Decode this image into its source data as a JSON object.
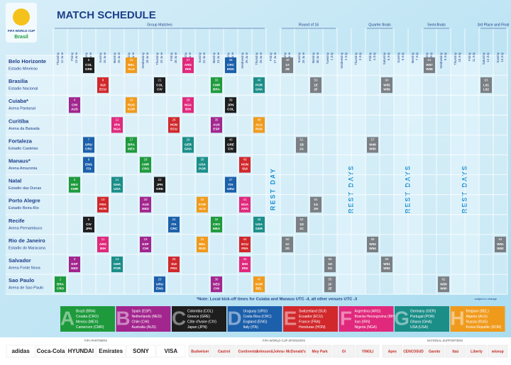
{
  "header": {
    "logo": [
      "FIFA WORLD CUP",
      "Brasil"
    ],
    "title": "MATCH SCHEDULE"
  },
  "stages": [
    {
      "name": "Group Matches",
      "first": "12 June",
      "last": "26 June"
    },
    {
      "name": "Round of 16",
      "first": "28 June",
      "last": "1 July"
    },
    {
      "name": "Quarter-finals",
      "first": "4 July",
      "last": "5 July"
    },
    {
      "name": "Semi-finals",
      "first": "8 July",
      "last": "9 July"
    },
    {
      "name": "3rd Place and Final",
      "first": "12 July",
      "last": "13 July"
    }
  ],
  "columns": [
    {
      "weekday": "Thursday",
      "date": "12 June"
    },
    {
      "weekday": "Friday",
      "date": "13 June"
    },
    {
      "weekday": "Saturday",
      "date": "14 June"
    },
    {
      "weekday": "Sunday",
      "date": "15 June"
    },
    {
      "weekday": "Monday",
      "date": "16 June"
    },
    {
      "weekday": "Tuesday",
      "date": "17 June"
    },
    {
      "weekday": "Wednesday",
      "date": "18 June"
    },
    {
      "weekday": "Thursday",
      "date": "19 June"
    },
    {
      "weekday": "Friday",
      "date": "20 June"
    },
    {
      "weekday": "Saturday",
      "date": "21 June"
    },
    {
      "weekday": "Sunday",
      "date": "22 June"
    },
    {
      "weekday": "Monday",
      "date": "23 June"
    },
    {
      "weekday": "Tuesday",
      "date": "24 June"
    },
    {
      "weekday": "Wednesday",
      "date": "25 June"
    },
    {
      "weekday": "Thursday",
      "date": "26 June"
    },
    {
      "weekday": "Friday",
      "date": "27 June"
    },
    {
      "weekday": "Saturday",
      "date": "28 June"
    },
    {
      "weekday": "Sunday",
      "date": "29 June"
    },
    {
      "weekday": "Monday",
      "date": "30 June"
    },
    {
      "weekday": "Tuesday",
      "date": "1 July"
    },
    {
      "weekday": "Wednesday",
      "date": "2 July"
    },
    {
      "weekday": "Thursday",
      "date": "3 July"
    },
    {
      "weekday": "Friday",
      "date": "4 July"
    },
    {
      "weekday": "Saturday",
      "date": "5 July"
    },
    {
      "weekday": "Sunday",
      "date": "6 July"
    },
    {
      "weekday": "Monday",
      "date": "7 July"
    },
    {
      "weekday": "Tuesday",
      "date": "8 July"
    },
    {
      "weekday": "Wednesday",
      "date": "9 July"
    },
    {
      "weekday": "Thursday",
      "date": "10 July"
    },
    {
      "weekday": "Friday",
      "date": "11 July"
    },
    {
      "weekday": "Saturday",
      "date": "12 July"
    },
    {
      "weekday": "Sunday",
      "date": "13 July"
    }
  ],
  "rest_days": [
    {
      "label": "REST DAY",
      "first": "27 June",
      "last": "27 June"
    },
    {
      "label": "REST DAYS",
      "first": "2 July",
      "last": "3 July"
    },
    {
      "label": "REST DAYS",
      "first": "6 July",
      "last": "7 July"
    },
    {
      "label": "REST DAYS",
      "first": "10 July",
      "last": "11 July"
    }
  ],
  "knockout_color": "#7a7f84",
  "venues": [
    {
      "city": "Belo Horizonte",
      "stadium": "Estadio Mineirao",
      "matches": [
        {
          "no": 5,
          "date": "14 June",
          "group": "C",
          "teams": [
            "COL",
            "GRE"
          ]
        },
        {
          "no": 15,
          "date": "17 June",
          "group": "H",
          "teams": [
            "BEL",
            "ALG"
          ]
        },
        {
          "no": 27,
          "date": "21 June",
          "group": "F",
          "teams": [
            "ARG",
            "IRN"
          ]
        },
        {
          "no": 38,
          "date": "24 June",
          "group": "D",
          "teams": [
            "CRC",
            "ENG"
          ]
        },
        {
          "no": 49,
          "date": "28 June",
          "teams": [
            "1A",
            "2B"
          ]
        },
        {
          "no": 61,
          "date": "8 July",
          "teams": [
            "W57",
            "W58"
          ]
        }
      ]
    },
    {
      "city": "Brasilia",
      "stadium": "Estadio Nacional",
      "matches": [
        {
          "no": 9,
          "date": "15 June",
          "group": "E",
          "teams": [
            "SUI",
            "ECU"
          ]
        },
        {
          "no": 21,
          "date": "19 June",
          "group": "C",
          "teams": [
            "COL",
            "CIV"
          ]
        },
        {
          "no": 33,
          "date": "23 June",
          "group": "A",
          "teams": [
            "CMR",
            "BRA"
          ]
        },
        {
          "no": 46,
          "date": "26 June",
          "group": "G",
          "teams": [
            "POR",
            "GHA"
          ]
        },
        {
          "no": 53,
          "date": "30 June",
          "teams": [
            "1E",
            "2F"
          ]
        },
        {
          "no": 60,
          "date": "5 July",
          "teams": [
            "W55",
            "W56"
          ]
        },
        {
          "no": 63,
          "date": "12 July",
          "teams": [
            "L61",
            "L62"
          ]
        }
      ]
    },
    {
      "city": "Cuiaba*",
      "stadium": "Arena Pantanal",
      "matches": [
        {
          "no": 4,
          "date": "13 June",
          "group": "B",
          "teams": [
            "CHI",
            "AUS"
          ]
        },
        {
          "no": 16,
          "date": "17 June",
          "group": "H",
          "teams": [
            "RUS",
            "KOR"
          ]
        },
        {
          "no": 28,
          "date": "21 June",
          "group": "F",
          "teams": [
            "NGA",
            "BIH"
          ]
        },
        {
          "no": 39,
          "date": "24 June",
          "group": "C",
          "teams": [
            "JPN",
            "COL"
          ]
        }
      ]
    },
    {
      "city": "Curitiba",
      "stadium": "Arena da Baixada",
      "matches": [
        {
          "no": 12,
          "date": "16 June",
          "group": "F",
          "teams": [
            "IRN",
            "NGA"
          ]
        },
        {
          "no": 26,
          "date": "20 June",
          "group": "E",
          "teams": [
            "HON",
            "ECU"
          ]
        },
        {
          "no": 35,
          "date": "23 June",
          "group": "B",
          "teams": [
            "AUS",
            "ESP"
          ]
        },
        {
          "no": 48,
          "date": "26 June",
          "group": "H",
          "teams": [
            "ALG",
            "RUS"
          ]
        }
      ]
    },
    {
      "city": "Fortaleza",
      "stadium": "Estadio Castelao",
      "matches": [
        {
          "no": 7,
          "date": "14 June",
          "group": "D",
          "teams": [
            "URU",
            "CRC"
          ]
        },
        {
          "no": 17,
          "date": "17 June",
          "group": "A",
          "teams": [
            "BRA",
            "MEX"
          ]
        },
        {
          "no": 29,
          "date": "21 June",
          "group": "G",
          "teams": [
            "GER",
            "GHA"
          ]
        },
        {
          "no": 40,
          "date": "24 June",
          "group": "C",
          "teams": [
            "GRE",
            "CIV"
          ]
        },
        {
          "no": 51,
          "date": "29 June",
          "teams": [
            "1B",
            "2A"
          ]
        },
        {
          "no": 57,
          "date": "4 July",
          "teams": [
            "W49",
            "W50"
          ]
        }
      ]
    },
    {
      "city": "Manaus*",
      "stadium": "Arena Amazonia",
      "matches": [
        {
          "no": 8,
          "date": "14 June",
          "group": "D",
          "teams": [
            "ENG",
            "ITA"
          ]
        },
        {
          "no": 18,
          "date": "18 June",
          "group": "A",
          "teams": [
            "CMR",
            "CRO"
          ]
        },
        {
          "no": 30,
          "date": "22 June",
          "group": "G",
          "teams": [
            "USA",
            "POR"
          ]
        },
        {
          "no": 43,
          "date": "25 June",
          "group": "E",
          "teams": [
            "HON",
            "SUI"
          ]
        }
      ]
    },
    {
      "city": "Natal",
      "stadium": "Estadio das Dunas",
      "matches": [
        {
          "no": 2,
          "date": "13 June",
          "group": "A",
          "teams": [
            "MEX",
            "CMR"
          ]
        },
        {
          "no": 14,
          "date": "16 June",
          "group": "G",
          "teams": [
            "GHA",
            "USA"
          ]
        },
        {
          "no": 22,
          "date": "19 June",
          "group": "C",
          "teams": [
            "JPN",
            "GRE"
          ]
        },
        {
          "no": 37,
          "date": "24 June",
          "group": "D",
          "teams": [
            "ITA",
            "URU"
          ]
        }
      ]
    },
    {
      "city": "Porto Alegre",
      "stadium": "Estadio Beira-Rio",
      "matches": [
        {
          "no": 10,
          "date": "15 June",
          "group": "E",
          "teams": [
            "FRA",
            "HON"
          ]
        },
        {
          "no": 20,
          "date": "18 June",
          "group": "B",
          "teams": [
            "AUS",
            "NED"
          ]
        },
        {
          "no": 32,
          "date": "22 June",
          "group": "H",
          "teams": [
            "KOR",
            "ALG"
          ]
        },
        {
          "no": 41,
          "date": "25 June",
          "group": "F",
          "teams": [
            "NGA",
            "ARG"
          ]
        },
        {
          "no": 54,
          "date": "30 June",
          "teams": [
            "1G",
            "2H"
          ]
        }
      ]
    },
    {
      "city": "Recife",
      "stadium": "Arena Pernambuco",
      "matches": [
        {
          "no": 6,
          "date": "14 June",
          "group": "C",
          "teams": [
            "CIV",
            "JPN"
          ]
        },
        {
          "no": 24,
          "date": "20 June",
          "group": "D",
          "teams": [
            "ITA",
            "CRC"
          ]
        },
        {
          "no": 34,
          "date": "23 June",
          "group": "A",
          "teams": [
            "CRO",
            "MEX"
          ]
        },
        {
          "no": 45,
          "date": "26 June",
          "group": "G",
          "teams": [
            "USA",
            "GER"
          ]
        },
        {
          "no": 52,
          "date": "29 June",
          "teams": [
            "1D",
            "2C"
          ]
        }
      ]
    },
    {
      "city": "Rio de Janeiro",
      "stadium": "Estadio do Maracana",
      "matches": [
        {
          "no": 11,
          "date": "15 June",
          "group": "F",
          "teams": [
            "ARG",
            "BIH"
          ]
        },
        {
          "no": 19,
          "date": "18 June",
          "group": "B",
          "teams": [
            "ESP",
            "CHI"
          ]
        },
        {
          "no": 31,
          "date": "22 June",
          "group": "H",
          "teams": [
            "BEL",
            "RUS"
          ]
        },
        {
          "no": 44,
          "date": "25 June",
          "group": "E",
          "teams": [
            "ECU",
            "FRA"
          ]
        },
        {
          "no": 50,
          "date": "28 June",
          "teams": [
            "1C",
            "2D"
          ]
        },
        {
          "no": 58,
          "date": "4 July",
          "teams": [
            "W53",
            "W54"
          ]
        },
        {
          "no": 64,
          "date": "13 July",
          "teams": [
            "W61",
            "W62"
          ]
        }
      ]
    },
    {
      "city": "Salvador",
      "stadium": "Arena Fonte Nova",
      "matches": [
        {
          "no": 3,
          "date": "13 June",
          "group": "B",
          "teams": [
            "ESP",
            "NED"
          ]
        },
        {
          "no": 13,
          "date": "16 June",
          "group": "G",
          "teams": [
            "GER",
            "POR"
          ]
        },
        {
          "no": 25,
          "date": "20 June",
          "group": "E",
          "teams": [
            "SUI",
            "FRA"
          ]
        },
        {
          "no": 42,
          "date": "25 June",
          "group": "F",
          "teams": [
            "BIH",
            "IRN"
          ]
        },
        {
          "no": 56,
          "date": "1 July",
          "teams": [
            "1H",
            "2G"
          ]
        },
        {
          "no": 59,
          "date": "5 July",
          "teams": [
            "W51",
            "W52"
          ]
        }
      ]
    },
    {
      "city": "Sao Paulo",
      "stadium": "Arena de Sao Paulo",
      "matches": [
        {
          "no": 1,
          "date": "12 June",
          "group": "A",
          "teams": [
            "BRA",
            "CRO"
          ]
        },
        {
          "no": 23,
          "date": "19 June",
          "group": "D",
          "teams": [
            "URU",
            "ENG"
          ]
        },
        {
          "no": 36,
          "date": "23 June",
          "group": "B",
          "teams": [
            "NED",
            "CHI"
          ]
        },
        {
          "no": 47,
          "date": "26 June",
          "group": "H",
          "teams": [
            "KOR",
            "BEL"
          ]
        },
        {
          "no": 55,
          "date": "1 July",
          "teams": [
            "1F",
            "2E"
          ]
        },
        {
          "no": 62,
          "date": "9 July",
          "teams": [
            "W59",
            "W60"
          ]
        }
      ]
    }
  ],
  "note": "*Note: Local kick-off times for Cuiaba and Manaus UTC -4, all other venues UTC -3",
  "subject": "subject to change",
  "groups": [
    {
      "letter": "A",
      "color": "#1e9a3c",
      "teams": [
        "Brazil (BRA)",
        "Croatia (CRO)",
        "Mexico (MEX)",
        "Cameroon (CMR)"
      ]
    },
    {
      "letter": "B",
      "color": "#a2268e",
      "teams": [
        "Spain (ESP)",
        "Netherlands (NED)",
        "Chile (CHI)",
        "Australia (AUS)"
      ]
    },
    {
      "letter": "C",
      "color": "#1e1e1e",
      "teams": [
        "Colombia (COL)",
        "Greece (GRE)",
        "Côte d'Ivoire (CIV)",
        "Japan (JPN)"
      ]
    },
    {
      "letter": "D",
      "color": "#1c5fab",
      "teams": [
        "Uruguay (URU)",
        "Costa Rica (CRC)",
        "England (ENG)",
        "Italy (ITA)"
      ]
    },
    {
      "letter": "E",
      "color": "#d1282c",
      "teams": [
        "Switzerland (SUI)",
        "Ecuador (ECU)",
        "France (FRA)",
        "Honduras (HON)"
      ]
    },
    {
      "letter": "F",
      "color": "#e0297c",
      "teams": [
        "Argentina (ARG)",
        "Bosnia-Herzegovina (BIH)",
        "Iran (IRN)",
        "Nigeria (NGA)"
      ]
    },
    {
      "letter": "G",
      "color": "#1b8e88",
      "teams": [
        "Germany (GER)",
        "Portugal (POR)",
        "Ghana (GHA)",
        "USA (USA)"
      ]
    },
    {
      "letter": "H",
      "color": "#f09a1c",
      "teams": [
        "Belgium (BEL)",
        "Algeria (ALG)",
        "Russia (RUS)",
        "Korea Republic (KOR)"
      ]
    }
  ],
  "sponsors": [
    {
      "heading": "FIFA PARTNERS",
      "names": [
        "adidas",
        "Coca-Cola",
        "HYUNDAI",
        "Emirates",
        "SONY",
        "VISA"
      ]
    },
    {
      "heading": "FIFA WORLD CUP SPONSORS",
      "names": [
        "Budweiser",
        "Castrol",
        "Continental",
        "Johnson&Johnson",
        "McDonald's",
        "Moy Park",
        "Oi",
        "YINGLI"
      ]
    },
    {
      "heading": "NATIONAL SUPPORTERS",
      "names": [
        "Apex",
        "CENCOSUD",
        "Garoto",
        "Itaú",
        "Liberty",
        "wiseup"
      ]
    }
  ]
}
